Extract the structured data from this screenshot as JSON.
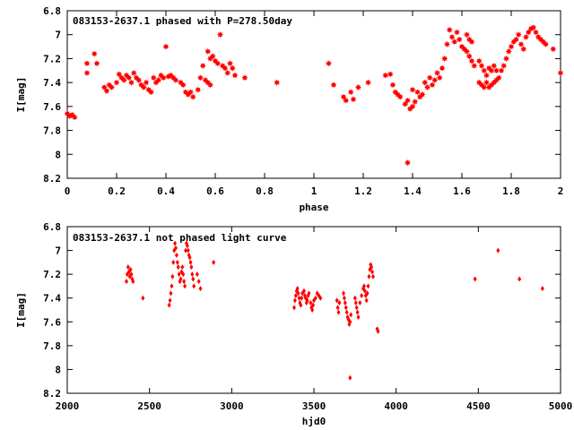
{
  "chart_data": [
    {
      "type": "scatter",
      "title": "083153-2637.1 phased with P=278.50day",
      "xlabel": "phase",
      "ylabel": "I[mag]",
      "xlim": [
        0,
        2
      ],
      "ylim": [
        6.8,
        8.2
      ],
      "y_inverted": true,
      "xticks": [
        0,
        0.2,
        0.4,
        0.6,
        0.8,
        1,
        1.2,
        1.4,
        1.6,
        1.8,
        2
      ],
      "xtick_labels": [
        "0",
        "0.2",
        "0.4",
        "0.6",
        "0.8",
        "1",
        "1.2",
        "1.4",
        "1.6",
        "1.8",
        "2"
      ],
      "yticks": [
        6.8,
        7,
        7.2,
        7.4,
        7.6,
        7.8,
        8,
        8.2
      ],
      "ytick_labels": [
        "6.8",
        "7",
        "7.2",
        "7.4",
        "7.6",
        "7.8",
        "8",
        "8.2"
      ],
      "color": "#ff0000",
      "marker": "star",
      "points": [
        [
          0.0,
          7.66
        ],
        [
          0.01,
          7.68
        ],
        [
          0.02,
          7.67
        ],
        [
          0.03,
          7.69
        ],
        [
          0.08,
          7.24
        ],
        [
          0.08,
          7.32
        ],
        [
          0.11,
          7.16
        ],
        [
          0.12,
          7.24
        ],
        [
          0.15,
          7.44
        ],
        [
          0.16,
          7.47
        ],
        [
          0.17,
          7.42
        ],
        [
          0.18,
          7.44
        ],
        [
          0.2,
          7.4
        ],
        [
          0.21,
          7.33
        ],
        [
          0.22,
          7.36
        ],
        [
          0.23,
          7.38
        ],
        [
          0.24,
          7.34
        ],
        [
          0.25,
          7.36
        ],
        [
          0.26,
          7.4
        ],
        [
          0.27,
          7.32
        ],
        [
          0.28,
          7.36
        ],
        [
          0.29,
          7.38
        ],
        [
          0.3,
          7.42
        ],
        [
          0.31,
          7.44
        ],
        [
          0.32,
          7.4
        ],
        [
          0.33,
          7.46
        ],
        [
          0.34,
          7.48
        ],
        [
          0.35,
          7.36
        ],
        [
          0.36,
          7.4
        ],
        [
          0.37,
          7.38
        ],
        [
          0.38,
          7.34
        ],
        [
          0.39,
          7.36
        ],
        [
          0.4,
          7.1
        ],
        [
          0.41,
          7.35
        ],
        [
          0.42,
          7.34
        ],
        [
          0.43,
          7.36
        ],
        [
          0.44,
          7.38
        ],
        [
          0.46,
          7.4
        ],
        [
          0.47,
          7.42
        ],
        [
          0.48,
          7.48
        ],
        [
          0.49,
          7.5
        ],
        [
          0.5,
          7.48
        ],
        [
          0.51,
          7.52
        ],
        [
          0.53,
          7.46
        ],
        [
          0.54,
          7.36
        ],
        [
          0.55,
          7.26
        ],
        [
          0.56,
          7.38
        ],
        [
          0.57,
          7.4
        ],
        [
          0.58,
          7.42
        ],
        [
          0.57,
          7.14
        ],
        [
          0.58,
          7.2
        ],
        [
          0.59,
          7.18
        ],
        [
          0.6,
          7.22
        ],
        [
          0.61,
          7.24
        ],
        [
          0.62,
          7.0
        ],
        [
          0.63,
          7.26
        ],
        [
          0.64,
          7.28
        ],
        [
          0.65,
          7.32
        ],
        [
          0.66,
          7.24
        ],
        [
          0.67,
          7.28
        ],
        [
          0.68,
          7.34
        ],
        [
          0.72,
          7.36
        ],
        [
          0.85,
          7.4
        ],
        [
          1.06,
          7.24
        ],
        [
          1.08,
          7.42
        ],
        [
          1.12,
          7.52
        ],
        [
          1.13,
          7.55
        ],
        [
          1.15,
          7.48
        ],
        [
          1.16,
          7.54
        ],
        [
          1.18,
          7.44
        ],
        [
          1.22,
          7.4
        ],
        [
          1.29,
          7.34
        ],
        [
          1.31,
          7.33
        ],
        [
          1.32,
          7.42
        ],
        [
          1.33,
          7.48
        ],
        [
          1.34,
          7.5
        ],
        [
          1.35,
          7.52
        ],
        [
          1.37,
          7.58
        ],
        [
          1.38,
          7.55
        ],
        [
          1.38,
          8.07
        ],
        [
          1.39,
          7.62
        ],
        [
          1.4,
          7.6
        ],
        [
          1.4,
          7.46
        ],
        [
          1.41,
          7.56
        ],
        [
          1.42,
          7.48
        ],
        [
          1.43,
          7.52
        ],
        [
          1.44,
          7.5
        ],
        [
          1.45,
          7.4
        ],
        [
          1.46,
          7.44
        ],
        [
          1.47,
          7.36
        ],
        [
          1.48,
          7.42
        ],
        [
          1.49,
          7.38
        ],
        [
          1.5,
          7.32
        ],
        [
          1.51,
          7.36
        ],
        [
          1.52,
          7.28
        ],
        [
          1.53,
          7.2
        ],
        [
          1.54,
          7.08
        ],
        [
          1.55,
          6.96
        ],
        [
          1.56,
          7.02
        ],
        [
          1.57,
          7.06
        ],
        [
          1.58,
          6.98
        ],
        [
          1.59,
          7.04
        ],
        [
          1.6,
          7.1
        ],
        [
          1.61,
          7.12
        ],
        [
          1.62,
          7.14
        ],
        [
          1.63,
          7.18
        ],
        [
          1.64,
          7.22
        ],
        [
          1.65,
          7.26
        ],
        [
          1.62,
          7.0
        ],
        [
          1.63,
          7.04
        ],
        [
          1.64,
          7.06
        ],
        [
          1.67,
          7.22
        ],
        [
          1.68,
          7.26
        ],
        [
          1.69,
          7.3
        ],
        [
          1.7,
          7.34
        ],
        [
          1.71,
          7.28
        ],
        [
          1.72,
          7.3
        ],
        [
          1.73,
          7.26
        ],
        [
          1.74,
          7.3
        ],
        [
          1.67,
          7.4
        ],
        [
          1.68,
          7.42
        ],
        [
          1.69,
          7.44
        ],
        [
          1.7,
          7.4
        ],
        [
          1.71,
          7.44
        ],
        [
          1.72,
          7.42
        ],
        [
          1.73,
          7.4
        ],
        [
          1.74,
          7.38
        ],
        [
          1.75,
          7.36
        ],
        [
          1.76,
          7.3
        ],
        [
          1.77,
          7.26
        ],
        [
          1.78,
          7.2
        ],
        [
          1.79,
          7.14
        ],
        [
          1.8,
          7.1
        ],
        [
          1.81,
          7.06
        ],
        [
          1.82,
          7.04
        ],
        [
          1.83,
          7.0
        ],
        [
          1.84,
          7.08
        ],
        [
          1.85,
          7.12
        ],
        [
          1.86,
          7.02
        ],
        [
          1.87,
          6.98
        ],
        [
          1.88,
          6.95
        ],
        [
          1.89,
          6.94
        ],
        [
          1.9,
          6.98
        ],
        [
          1.91,
          7.02
        ],
        [
          1.92,
          7.04
        ],
        [
          1.93,
          7.06
        ],
        [
          1.94,
          7.08
        ],
        [
          1.97,
          7.12
        ],
        [
          2.0,
          7.32
        ]
      ]
    },
    {
      "type": "scatter",
      "title": "083153-2637.1 not phased light curve",
      "xlabel": "hjd0",
      "ylabel": "I[mag]",
      "xlim": [
        2000,
        5000
      ],
      "ylim": [
        6.8,
        8.2
      ],
      "y_inverted": true,
      "xticks": [
        2000,
        2500,
        3000,
        3500,
        4000,
        4500,
        5000
      ],
      "xtick_labels": [
        "2000",
        "2500",
        "3000",
        "3500",
        "4000",
        "4500",
        "5000"
      ],
      "yticks": [
        6.8,
        7,
        7.2,
        7.4,
        7.6,
        7.8,
        8,
        8.2
      ],
      "ytick_labels": [
        "6.8",
        "7",
        "7.2",
        "7.4",
        "7.6",
        "7.8",
        "8",
        "8.2"
      ],
      "color": "#ff0000",
      "marker": "diamond",
      "points": [
        [
          2360,
          7.26
        ],
        [
          2365,
          7.2
        ],
        [
          2370,
          7.14
        ],
        [
          2375,
          7.18
        ],
        [
          2380,
          7.22
        ],
        [
          2385,
          7.16
        ],
        [
          2390,
          7.2
        ],
        [
          2395,
          7.24
        ],
        [
          2400,
          7.26
        ],
        [
          2460,
          7.4
        ],
        [
          2620,
          7.46
        ],
        [
          2625,
          7.42
        ],
        [
          2630,
          7.36
        ],
        [
          2635,
          7.3
        ],
        [
          2640,
          7.22
        ],
        [
          2645,
          7.1
        ],
        [
          2650,
          7.0
        ],
        [
          2655,
          6.94
        ],
        [
          2660,
          6.98
        ],
        [
          2665,
          7.04
        ],
        [
          2670,
          7.1
        ],
        [
          2675,
          7.14
        ],
        [
          2680,
          7.2
        ],
        [
          2685,
          7.26
        ],
        [
          2690,
          7.24
        ],
        [
          2695,
          7.18
        ],
        [
          2700,
          7.14
        ],
        [
          2705,
          7.2
        ],
        [
          2710,
          7.26
        ],
        [
          2715,
          7.3
        ],
        [
          2720,
          7.0
        ],
        [
          2725,
          6.94
        ],
        [
          2730,
          6.96
        ],
        [
          2735,
          7.0
        ],
        [
          2740,
          7.04
        ],
        [
          2745,
          7.06
        ],
        [
          2750,
          7.1
        ],
        [
          2755,
          7.14
        ],
        [
          2760,
          7.2
        ],
        [
          2765,
          7.24
        ],
        [
          2770,
          7.3
        ],
        [
          2790,
          7.2
        ],
        [
          2800,
          7.26
        ],
        [
          2810,
          7.32
        ],
        [
          2890,
          7.1
        ],
        [
          3380,
          7.48
        ],
        [
          3385,
          7.42
        ],
        [
          3390,
          7.38
        ],
        [
          3395,
          7.34
        ],
        [
          3400,
          7.32
        ],
        [
          3405,
          7.36
        ],
        [
          3410,
          7.4
        ],
        [
          3415,
          7.44
        ],
        [
          3420,
          7.46
        ],
        [
          3425,
          7.4
        ],
        [
          3430,
          7.36
        ],
        [
          3440,
          7.34
        ],
        [
          3445,
          7.38
        ],
        [
          3450,
          7.4
        ],
        [
          3455,
          7.44
        ],
        [
          3460,
          7.42
        ],
        [
          3465,
          7.38
        ],
        [
          3470,
          7.36
        ],
        [
          3480,
          7.44
        ],
        [
          3485,
          7.48
        ],
        [
          3490,
          7.5
        ],
        [
          3495,
          7.46
        ],
        [
          3500,
          7.42
        ],
        [
          3510,
          7.4
        ],
        [
          3520,
          7.36
        ],
        [
          3530,
          7.38
        ],
        [
          3540,
          7.4
        ],
        [
          3640,
          7.42
        ],
        [
          3645,
          7.48
        ],
        [
          3650,
          7.52
        ],
        [
          3655,
          7.44
        ],
        [
          3680,
          7.36
        ],
        [
          3685,
          7.4
        ],
        [
          3690,
          7.44
        ],
        [
          3695,
          7.48
        ],
        [
          3700,
          7.52
        ],
        [
          3705,
          7.56
        ],
        [
          3710,
          7.58
        ],
        [
          3715,
          7.62
        ],
        [
          3720,
          7.6
        ],
        [
          3725,
          7.54
        ],
        [
          3720,
          8.07
        ],
        [
          3750,
          7.4
        ],
        [
          3755,
          7.44
        ],
        [
          3760,
          7.48
        ],
        [
          3765,
          7.52
        ],
        [
          3770,
          7.56
        ],
        [
          3780,
          7.44
        ],
        [
          3790,
          7.38
        ],
        [
          3800,
          7.32
        ],
        [
          3805,
          7.3
        ],
        [
          3810,
          7.34
        ],
        [
          3815,
          7.38
        ],
        [
          3820,
          7.42
        ],
        [
          3825,
          7.36
        ],
        [
          3830,
          7.3
        ],
        [
          3835,
          7.22
        ],
        [
          3840,
          7.16
        ],
        [
          3845,
          7.12
        ],
        [
          3850,
          7.14
        ],
        [
          3855,
          7.18
        ],
        [
          3860,
          7.22
        ],
        [
          3885,
          7.66
        ],
        [
          3890,
          7.68
        ],
        [
          4480,
          7.24
        ],
        [
          4620,
          7.0
        ],
        [
          4750,
          7.24
        ],
        [
          4890,
          7.32
        ]
      ]
    }
  ]
}
